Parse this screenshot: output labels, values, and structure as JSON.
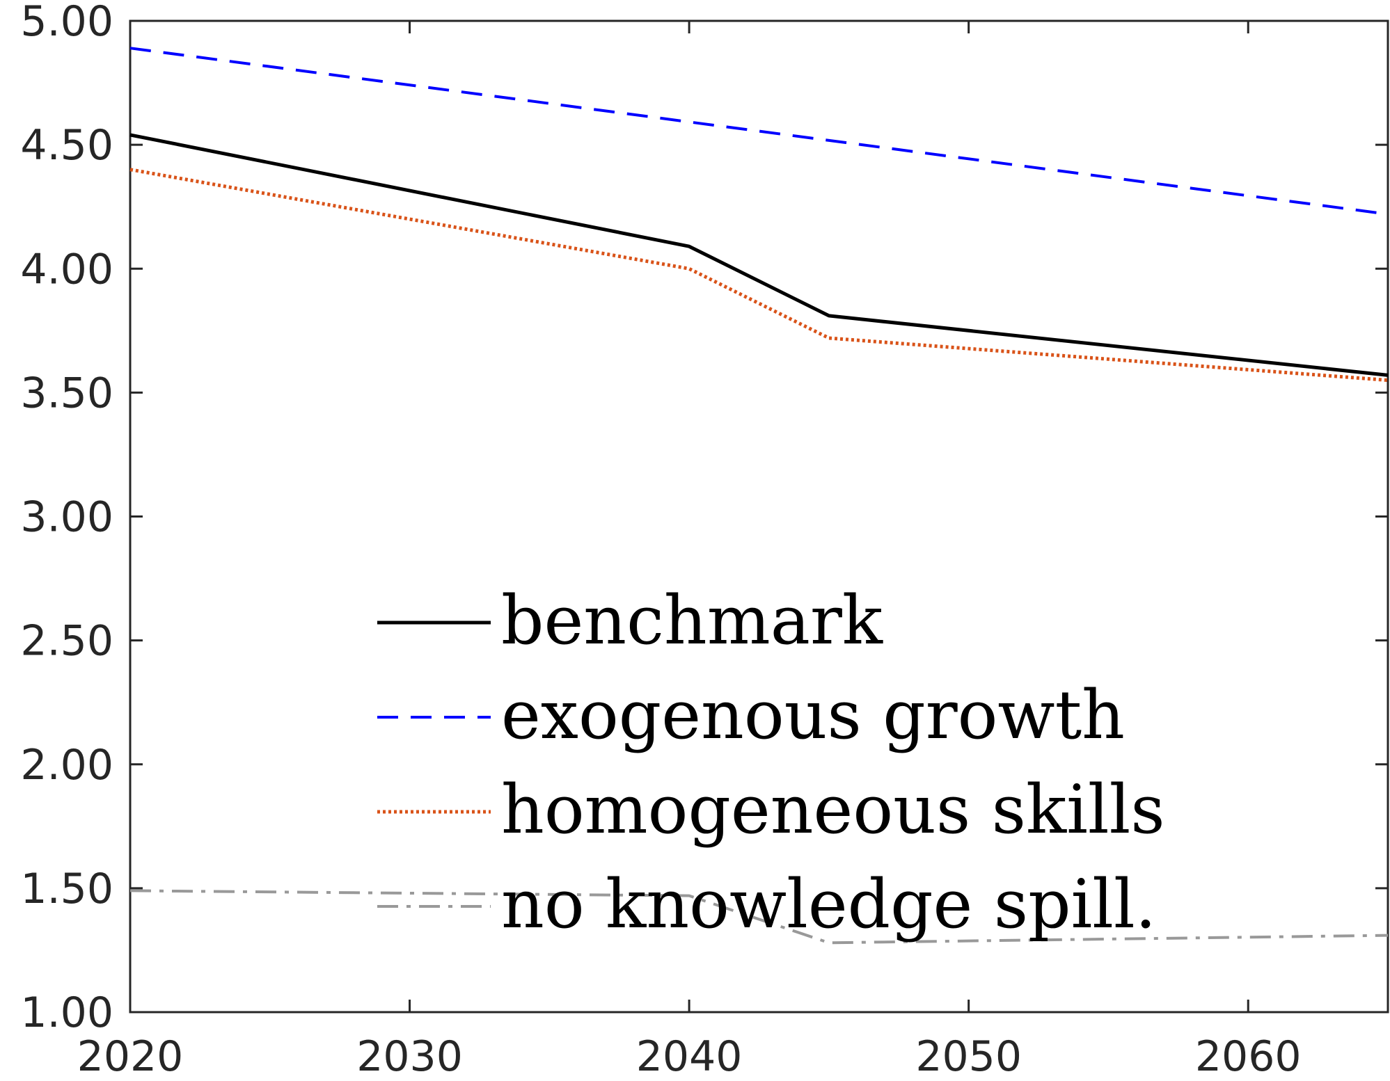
{
  "chart_data": {
    "type": "line",
    "title": "",
    "xlabel": "",
    "ylabel": "",
    "xlim": [
      2020,
      2065
    ],
    "ylim": [
      1.0,
      5.0
    ],
    "grid": false,
    "legend_position": "center-bottom",
    "x_ticks": [
      "2020",
      "2030",
      "2040",
      "2050",
      "2060"
    ],
    "y_ticks": [
      "1.00",
      "1.50",
      "2.00",
      "2.50",
      "3.00",
      "3.50",
      "4.00",
      "4.50",
      "5.00"
    ],
    "series": [
      {
        "name": "benchmark",
        "color": "#000000",
        "dash": "solid",
        "x": [
          2020,
          2040,
          2045,
          2065
        ],
        "y": [
          4.54,
          4.09,
          3.81,
          3.57
        ]
      },
      {
        "name": "exogenous growth",
        "color": "#0000ff",
        "dash": "dashed",
        "x": [
          2020,
          2065
        ],
        "y": [
          4.89,
          4.22
        ]
      },
      {
        "name": "homogeneous skills",
        "color": "#d95319",
        "dash": "dotted",
        "x": [
          2020,
          2040,
          2045,
          2065
        ],
        "y": [
          4.4,
          4.0,
          3.72,
          3.55
        ]
      },
      {
        "name": "no knowledge spill.",
        "color": "#999999",
        "dash": "dashdot",
        "x": [
          2020,
          2040,
          2045,
          2065
        ],
        "y": [
          1.49,
          1.47,
          1.28,
          1.31
        ]
      }
    ]
  }
}
